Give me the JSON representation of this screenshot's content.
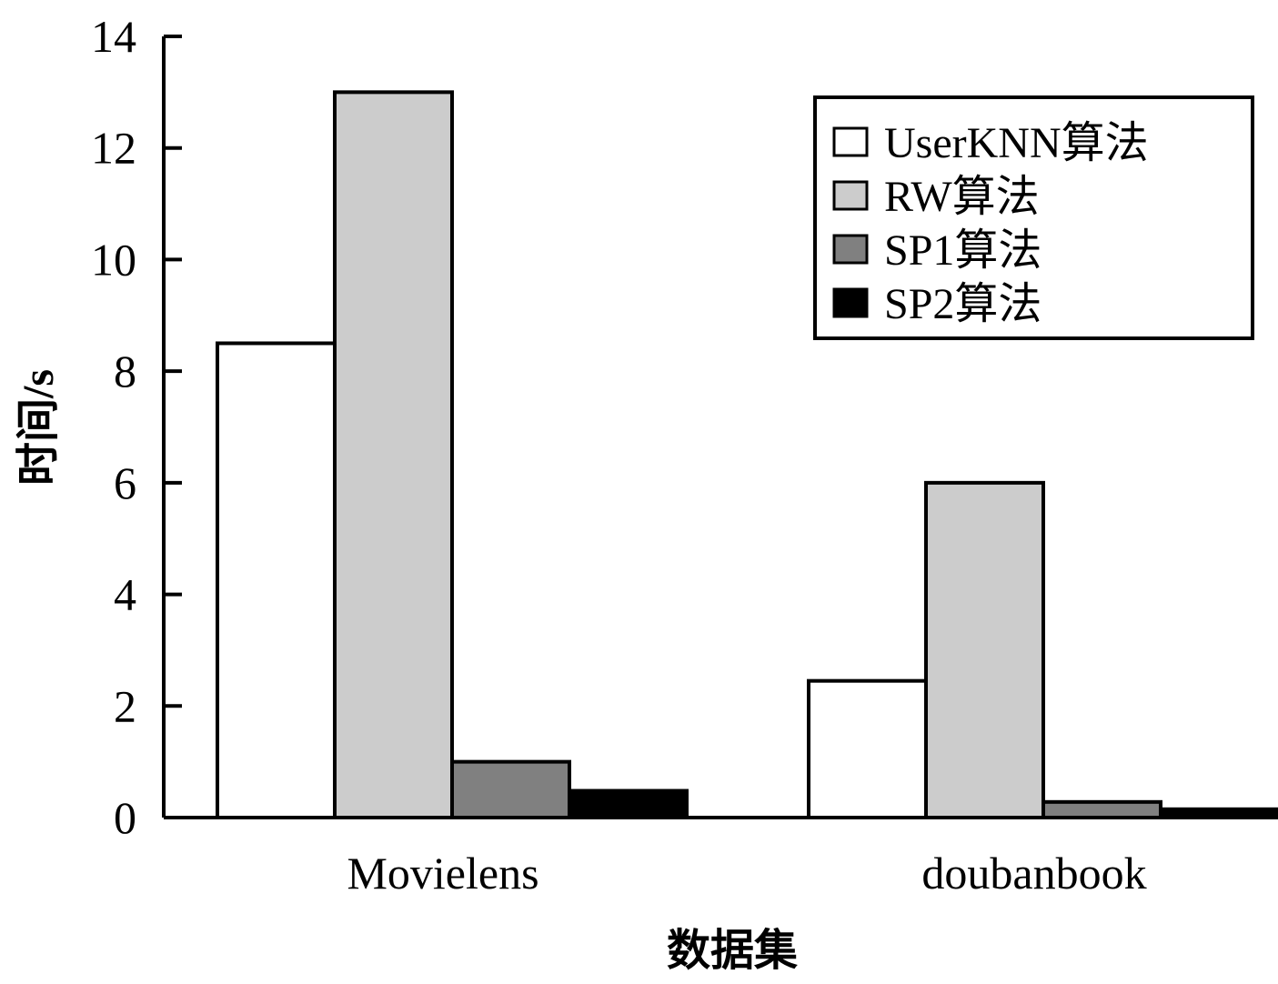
{
  "chart_data": {
    "type": "bar",
    "title": "",
    "xlabel": "数据集",
    "ylabel": "时间/s",
    "categories": [
      "Movielens",
      "doubanbook"
    ],
    "ylim": [
      0,
      14
    ],
    "yticks": [
      0,
      2,
      4,
      6,
      8,
      10,
      12,
      14
    ],
    "grid": false,
    "legend_position": "top-right",
    "series": [
      {
        "name": "UserKNN算法",
        "color": "#ffffff",
        "values": [
          8.5,
          2.45
        ]
      },
      {
        "name": "RW算法",
        "color": "#cccccc",
        "values": [
          13.0,
          6.0
        ]
      },
      {
        "name": "SP1算法",
        "color": "#808080",
        "values": [
          1.0,
          0.28
        ]
      },
      {
        "name": "SP2算法",
        "color": "#000000",
        "values": [
          0.48,
          0.15
        ]
      }
    ]
  }
}
